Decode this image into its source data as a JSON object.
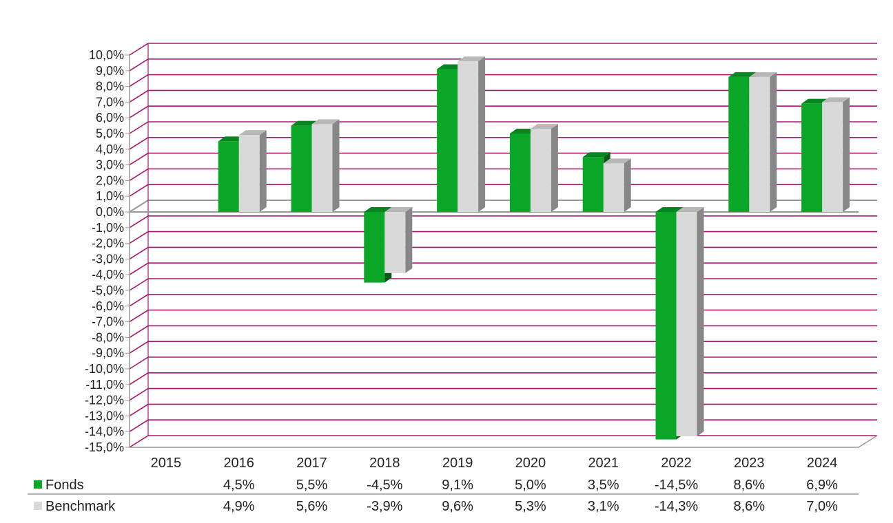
{
  "chart_data": {
    "type": "bar",
    "categories": [
      "2015",
      "2016",
      "2017",
      "2018",
      "2019",
      "2020",
      "2021",
      "2022",
      "2023",
      "2024"
    ],
    "series": [
      {
        "name": "Fonds",
        "color": "#0aa628",
        "values": [
          null,
          4.5,
          5.5,
          -4.5,
          9.1,
          5.0,
          3.5,
          -14.5,
          8.6,
          6.9
        ],
        "labels": [
          "",
          "4,5%",
          "5,5%",
          "-4,5%",
          "9,1%",
          "5,0%",
          "3,5%",
          "-14,5%",
          "8,6%",
          "6,9%"
        ]
      },
      {
        "name": "Benchmark",
        "color": "#d9d9d9",
        "values": [
          null,
          4.9,
          5.6,
          -3.9,
          9.6,
          5.3,
          3.1,
          -14.3,
          8.6,
          7.0
        ],
        "labels": [
          "",
          "4,9%",
          "5,6%",
          "-3,9%",
          "9,6%",
          "5,3%",
          "3,1%",
          "-14,3%",
          "8,6%",
          "7,0%"
        ]
      }
    ],
    "ylim": [
      -15,
      10
    ],
    "ytick_labels": [
      "10,0%",
      "9,0%",
      "8,0%",
      "7,0%",
      "6,0%",
      "5,0%",
      "4,0%",
      "3,0%",
      "2,0%",
      "1,0%",
      "0,0%",
      "-1,0%",
      "-2,0%",
      "-3,0%",
      "-4,0%",
      "-5,0%",
      "-6,0%",
      "-7,0%",
      "-8,0%",
      "-9,0%",
      "-10,0%",
      "-11,0%",
      "-12,0%",
      "-13,0%",
      "-14,0%",
      "-15,0%"
    ],
    "grid": true,
    "gridline_color": "#a6166e",
    "legend": "data table below chart",
    "style": "3d"
  }
}
